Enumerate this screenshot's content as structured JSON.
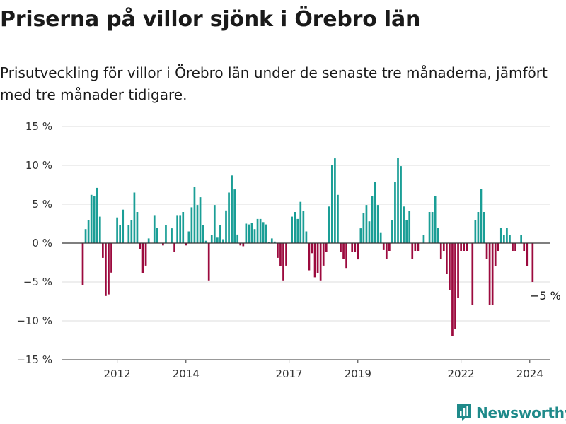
{
  "header": {
    "title": "Priserna på villor sjönk i Örebro län",
    "subtitle": "Prisutveckling för villor i Örebro län under de senaste tre månaderna, jämfört med tre månader tidigare."
  },
  "brand": {
    "name": "Newsworthy",
    "icon": "newsworthy-logo-icon"
  },
  "colors": {
    "positive": "#1a9e96",
    "negative": "#9c0a3e",
    "grid": "#dddddd",
    "zero_line": "#333333",
    "brand": "#1f8a8a"
  },
  "chart_data": {
    "type": "bar",
    "x_start": "2011-01",
    "x_interval": "month",
    "ylim": [
      -15,
      15
    ],
    "yticks": [
      15,
      10,
      5,
      0,
      -5,
      -10,
      -15
    ],
    "ytick_labels": [
      "15 %",
      "10 %",
      "5 %",
      "0 %",
      "−5 %",
      "−10 %",
      "−15 %"
    ],
    "xtick_labels": [
      {
        "label": "2012",
        "x": "2012-01"
      },
      {
        "label": "2014",
        "x": "2014-01"
      },
      {
        "label": "2017",
        "x": "2017-01"
      },
      {
        "label": "2019",
        "x": "2019-01"
      },
      {
        "label": "2022",
        "x": "2022-01"
      },
      {
        "label": "2024",
        "x": "2024-01"
      }
    ],
    "values": [
      -5.4,
      1.8,
      3.0,
      6.2,
      6.0,
      7.1,
      3.4,
      -1.9,
      -6.8,
      -6.6,
      -3.8,
      0.0,
      3.3,
      2.3,
      4.3,
      0.0,
      2.3,
      3.0,
      6.5,
      4.0,
      -0.8,
      -3.9,
      -2.9,
      0.6,
      0.0,
      3.6,
      2.0,
      0.0,
      -0.3,
      2.3,
      0.0,
      1.9,
      -1.1,
      3.6,
      3.6,
      4.0,
      -0.3,
      1.5,
      4.6,
      7.2,
      4.9,
      5.9,
      2.3,
      0.3,
      -4.8,
      1.0,
      4.9,
      0.7,
      2.3,
      0.5,
      4.2,
      6.5,
      8.7,
      6.9,
      1.1,
      -0.3,
      -0.4,
      2.5,
      2.4,
      2.6,
      1.8,
      3.1,
      3.1,
      2.7,
      2.4,
      0.1,
      0.6,
      0.2,
      -1.9,
      -3.0,
      -4.8,
      -2.9,
      0.0,
      3.4,
      4.0,
      3.1,
      5.3,
      4.1,
      1.5,
      -3.5,
      -1.3,
      -4.4,
      -3.9,
      -4.8,
      -2.9,
      -1.1,
      4.7,
      10.0,
      10.9,
      6.2,
      -1.1,
      -2.0,
      -3.2,
      0.0,
      -1.1,
      -1.1,
      -2.1,
      1.9,
      3.9,
      4.9,
      2.8,
      6.0,
      7.9,
      4.9,
      1.3,
      -0.9,
      -2.0,
      -1.0,
      3.0,
      7.9,
      11.0,
      9.9,
      4.7,
      3.0,
      4.1,
      -2.0,
      -1.0,
      -1.0,
      0.0,
      1.0,
      0.0,
      4.0,
      4.0,
      6.0,
      2.0,
      -2.0,
      -1.0,
      -4.0,
      -6.0,
      -12.0,
      -11.0,
      -7.0,
      -1.0,
      -1.0,
      -1.0,
      0.0,
      -8.0,
      3.0,
      4.0,
      7.0,
      4.0,
      -2.0,
      -8.0,
      -8.0,
      -3.0,
      -1.0,
      2.0,
      1.0,
      2.0,
      1.0,
      -1.0,
      -1.0,
      0.0,
      1.0,
      -1.0,
      -3.0,
      0.0,
      -5.0
    ],
    "annotation": {
      "text": "−5 %"
    }
  }
}
